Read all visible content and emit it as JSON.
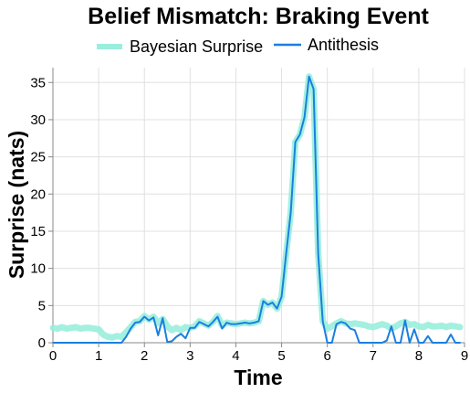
{
  "chart_data": {
    "type": "line",
    "title": "Belief Mismatch: Braking Event",
    "xlabel": "Time",
    "ylabel": "Surprise (nats)",
    "xlim": [
      0,
      9
    ],
    "ylim": [
      0,
      37
    ],
    "xticks": [
      0,
      1,
      2,
      3,
      4,
      5,
      6,
      7,
      8,
      9
    ],
    "yticks": [
      0,
      5,
      10,
      15,
      20,
      25,
      30,
      35
    ],
    "grid": true,
    "legend_position": "top",
    "series": [
      {
        "name": "Bayesian Surprise",
        "color": "#99eedd",
        "x": [
          0.0,
          0.1,
          0.2,
          0.3,
          0.4,
          0.5,
          0.6,
          0.7,
          0.8,
          0.9,
          1.0,
          1.1,
          1.2,
          1.3,
          1.4,
          1.5,
          1.6,
          1.7,
          1.8,
          1.9,
          2.0,
          2.1,
          2.2,
          2.3,
          2.4,
          2.5,
          2.6,
          2.7,
          2.8,
          2.9,
          3.0,
          3.1,
          3.2,
          3.3,
          3.4,
          3.5,
          3.6,
          3.7,
          3.8,
          3.9,
          4.0,
          4.1,
          4.2,
          4.3,
          4.4,
          4.5,
          4.6,
          4.7,
          4.8,
          4.9,
          5.0,
          5.1,
          5.2,
          5.3,
          5.4,
          5.5,
          5.6,
          5.7,
          5.8,
          5.9,
          6.0,
          6.1,
          6.2,
          6.3,
          6.4,
          6.5,
          6.6,
          6.7,
          6.8,
          6.9,
          7.0,
          7.1,
          7.2,
          7.3,
          7.4,
          7.5,
          7.6,
          7.7,
          7.8,
          7.9,
          8.0,
          8.1,
          8.2,
          8.3,
          8.4,
          8.5,
          8.6,
          8.7,
          8.8,
          8.9
        ],
        "values": [
          2.0,
          1.9,
          2.1,
          1.9,
          2.0,
          2.1,
          1.9,
          2.0,
          2.0,
          1.9,
          1.8,
          1.1,
          0.8,
          0.7,
          0.9,
          0.8,
          1.4,
          2.1,
          2.8,
          2.9,
          3.6,
          3.1,
          3.5,
          2.6,
          3.2,
          2.2,
          1.7,
          2.0,
          1.7,
          2.1,
          2.0,
          2.2,
          2.9,
          2.6,
          2.3,
          2.8,
          3.6,
          2.3,
          2.7,
          2.6,
          2.5,
          2.6,
          2.7,
          2.6,
          2.7,
          2.9,
          5.6,
          5.1,
          5.4,
          4.6,
          6.2,
          12.0,
          17.5,
          27.0,
          28.0,
          30.3,
          35.8,
          34.1,
          12.0,
          2.9,
          1.9,
          2.2,
          2.6,
          2.9,
          2.6,
          2.5,
          2.6,
          2.5,
          2.4,
          2.2,
          2.1,
          2.3,
          2.5,
          2.3,
          1.9,
          2.2,
          2.6,
          2.8,
          2.4,
          2.5,
          2.2,
          2.1,
          2.4,
          2.2,
          2.2,
          2.3,
          2.1,
          2.3,
          2.2,
          2.1
        ]
      },
      {
        "name": "Antithesis",
        "color": "#1a7fe0",
        "x": [
          0.0,
          0.1,
          0.2,
          0.3,
          0.4,
          0.5,
          0.6,
          0.7,
          0.8,
          0.9,
          1.0,
          1.1,
          1.2,
          1.3,
          1.4,
          1.5,
          1.6,
          1.7,
          1.8,
          1.9,
          2.0,
          2.1,
          2.2,
          2.3,
          2.4,
          2.5,
          2.6,
          2.7,
          2.8,
          2.9,
          3.0,
          3.1,
          3.2,
          3.3,
          3.4,
          3.5,
          3.6,
          3.7,
          3.8,
          3.9,
          4.0,
          4.1,
          4.2,
          4.3,
          4.4,
          4.5,
          4.6,
          4.7,
          4.8,
          4.9,
          5.0,
          5.1,
          5.2,
          5.3,
          5.4,
          5.5,
          5.6,
          5.7,
          5.8,
          5.9,
          6.0,
          6.1,
          6.2,
          6.3,
          6.4,
          6.5,
          6.6,
          6.7,
          6.8,
          6.9,
          7.0,
          7.1,
          7.2,
          7.3,
          7.4,
          7.5,
          7.6,
          7.7,
          7.8,
          7.9,
          8.0,
          8.1,
          8.2,
          8.3,
          8.4,
          8.5,
          8.6,
          8.7,
          8.8,
          8.9
        ],
        "values": [
          0,
          0,
          0,
          0,
          0,
          0,
          0,
          0,
          0,
          0,
          0,
          0,
          0,
          0,
          0,
          0,
          0.8,
          1.9,
          2.7,
          2.8,
          3.5,
          3.0,
          3.4,
          1.0,
          3.3,
          0.1,
          0.2,
          0.8,
          1.2,
          0.6,
          2.0,
          2.0,
          2.8,
          2.5,
          2.2,
          2.8,
          3.5,
          1.9,
          2.7,
          2.5,
          2.5,
          2.6,
          2.7,
          2.6,
          2.7,
          2.9,
          5.6,
          5.1,
          5.4,
          4.6,
          6.2,
          12.0,
          17.5,
          27.0,
          28.0,
          30.3,
          35.8,
          34.1,
          12.0,
          2.9,
          0.0,
          0.0,
          2.5,
          2.8,
          2.6,
          1.9,
          1.7,
          0.0,
          0.0,
          0.0,
          0.0,
          0.0,
          0.0,
          0.3,
          2.2,
          0.0,
          0.0,
          3.0,
          0.0,
          1.8,
          0.0,
          0.0,
          0.9,
          0.0,
          0.0,
          0.0,
          0.0,
          1.1,
          0.0,
          0.0
        ]
      }
    ]
  }
}
